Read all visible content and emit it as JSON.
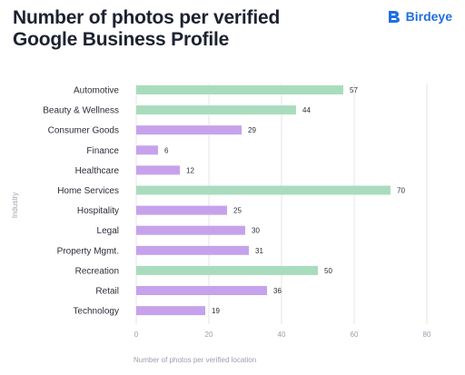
{
  "header": {
    "title": "Number of photos per verified Google Business Profile",
    "brand": "Birdeye"
  },
  "colors": {
    "green": "#a9dcbd",
    "purple": "#c6a2ec",
    "brand": "#1f6fe0",
    "grid": "#e6e6e6"
  },
  "chart_data": {
    "type": "bar",
    "orientation": "horizontal",
    "title": "Number of photos per verified Google Business Profile",
    "xlabel": "Number of photos per verified location",
    "ylabel": "Industry",
    "xlim": [
      0,
      80
    ],
    "xticks": [
      0,
      20,
      40,
      60,
      80
    ],
    "grid": true,
    "categories": [
      "Automotive",
      "Beauty & Wellness",
      "Consumer Goods",
      "Finance",
      "Healthcare",
      "Home Services",
      "Hospitality",
      "Legal",
      "Property Mgmt.",
      "Recreation",
      "Retail",
      "Technology"
    ],
    "values": [
      57,
      44,
      29,
      6,
      12,
      70,
      25,
      30,
      31,
      50,
      36,
      19
    ],
    "bar_colors": [
      "green",
      "green",
      "purple",
      "purple",
      "purple",
      "green",
      "purple",
      "purple",
      "purple",
      "green",
      "purple",
      "purple"
    ]
  }
}
